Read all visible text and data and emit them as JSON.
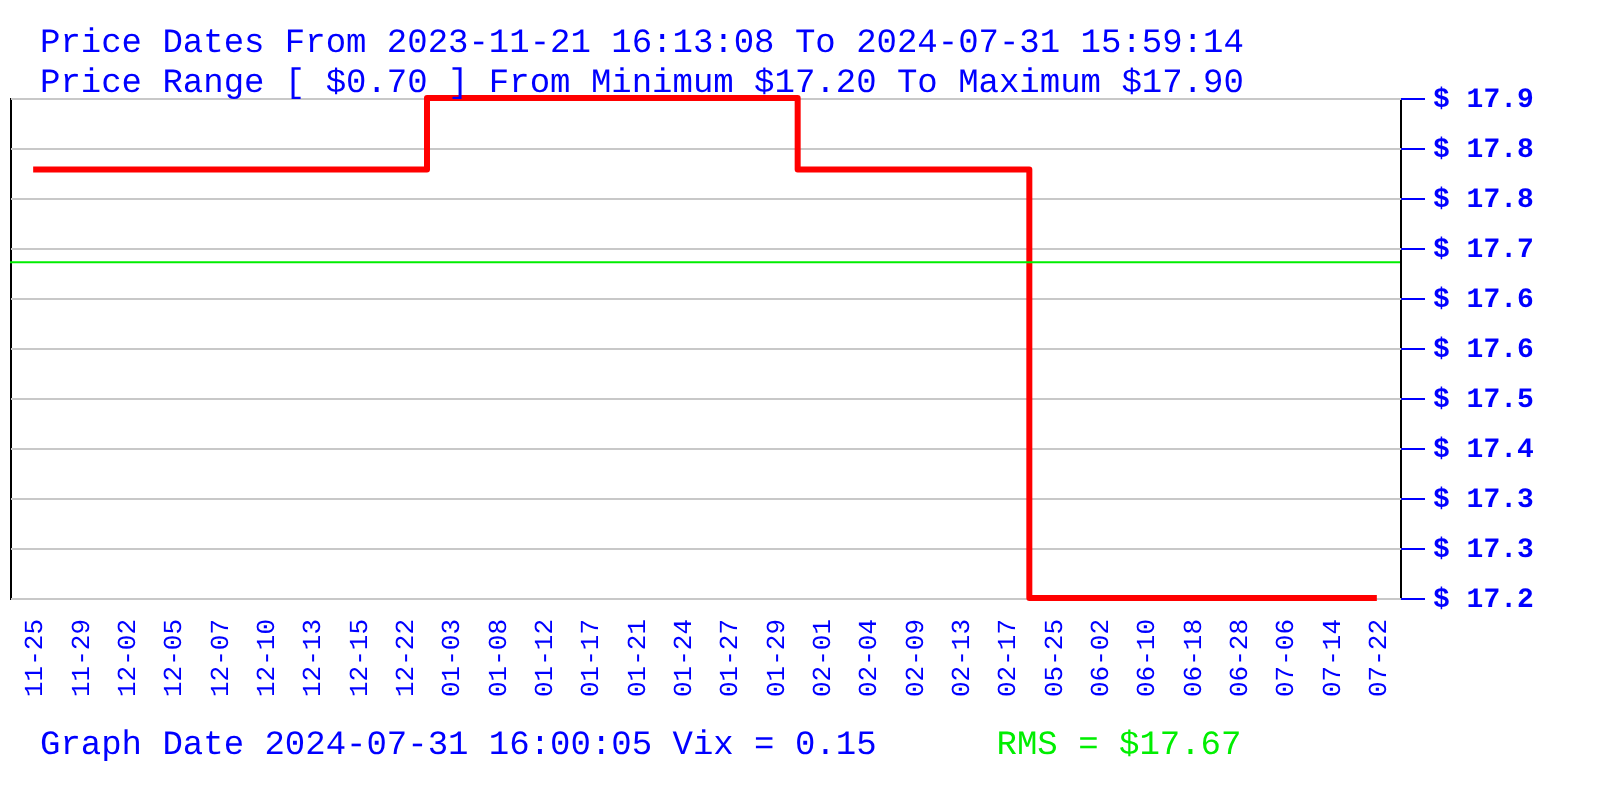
{
  "chart_data": {
    "type": "step",
    "title": "Price Dates From 2023-11-21 16:13:08 To 2024-07-31 15:59:14",
    "subtitle": "Price Range [ $0.70 ] From Minimum $17.20 To Maximum $17.90",
    "categories": [
      "11-25",
      "11-29",
      "12-02",
      "12-05",
      "12-07",
      "12-10",
      "12-13",
      "12-15",
      "12-22",
      "01-03",
      "01-08",
      "01-12",
      "01-17",
      "01-21",
      "01-24",
      "01-27",
      "01-29",
      "02-01",
      "02-04",
      "02-09",
      "02-13",
      "02-17",
      "05-25",
      "06-02",
      "06-10",
      "06-18",
      "06-28",
      "07-06",
      "07-14",
      "07-22"
    ],
    "series": [
      {
        "color": "#ff0000",
        "values": [
          17.8,
          17.8,
          17.8,
          17.8,
          17.8,
          17.8,
          17.8,
          17.8,
          17.8,
          17.9,
          17.9,
          17.9,
          17.9,
          17.9,
          17.9,
          17.9,
          17.9,
          17.8,
          17.8,
          17.8,
          17.8,
          17.8,
          17.2,
          17.2,
          17.2,
          17.2,
          17.2,
          17.2,
          17.2,
          17.2
        ]
      }
    ],
    "ylim": [
      17.2,
      17.9
    ],
    "yticks": [
      {
        "value": 17.2,
        "label": "$ 17.2"
      },
      {
        "value": 17.27,
        "label": "$ 17.3"
      },
      {
        "value": 17.34,
        "label": "$ 17.3"
      },
      {
        "value": 17.41,
        "label": "$ 17.4"
      },
      {
        "value": 17.48,
        "label": "$ 17.5"
      },
      {
        "value": 17.55,
        "label": "$ 17.6"
      },
      {
        "value": 17.62,
        "label": "$ 17.6"
      },
      {
        "value": 17.69,
        "label": "$ 17.7"
      },
      {
        "value": 17.76,
        "label": "$ 17.8"
      },
      {
        "value": 17.83,
        "label": "$ 17.8"
      },
      {
        "value": 17.9,
        "label": "$ 17.9"
      }
    ],
    "grid": "y",
    "ref_lines": [
      {
        "axis": "y",
        "value": 17.67,
        "label": "RMS = $17.67",
        "color": "#00ee00"
      }
    ],
    "annotations": [
      "Graph Date 2024-07-31 16:00:05 Vix = 0.15"
    ]
  }
}
